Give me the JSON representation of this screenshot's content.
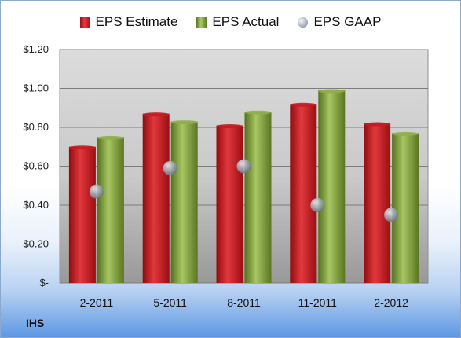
{
  "company": "IHS",
  "colors": {
    "estimate": "#c81e23",
    "actual": "#8aab4a",
    "gaap": "#a6aebb"
  },
  "chart_data": {
    "type": "bar",
    "categories": [
      "2-2011",
      "5-2011",
      "8-2011",
      "11-2011",
      "2-2012"
    ],
    "series": [
      {
        "name": "EPS Estimate",
        "kind": "bar",
        "values": [
          0.7,
          0.87,
          0.81,
          0.92,
          0.82
        ]
      },
      {
        "name": "EPS Actual",
        "kind": "bar",
        "values": [
          0.75,
          0.83,
          0.88,
          0.99,
          0.77
        ]
      },
      {
        "name": "EPS GAAP",
        "kind": "marker",
        "values": [
          0.47,
          0.59,
          0.6,
          0.4,
          0.35
        ]
      }
    ],
    "y_ticks": [
      "$-",
      "$0.20",
      "$0.40",
      "$0.60",
      "$0.80",
      "$1.00",
      "$1.20"
    ],
    "ylim": [
      0,
      1.2
    ],
    "grid": true,
    "legend": "top-center"
  }
}
